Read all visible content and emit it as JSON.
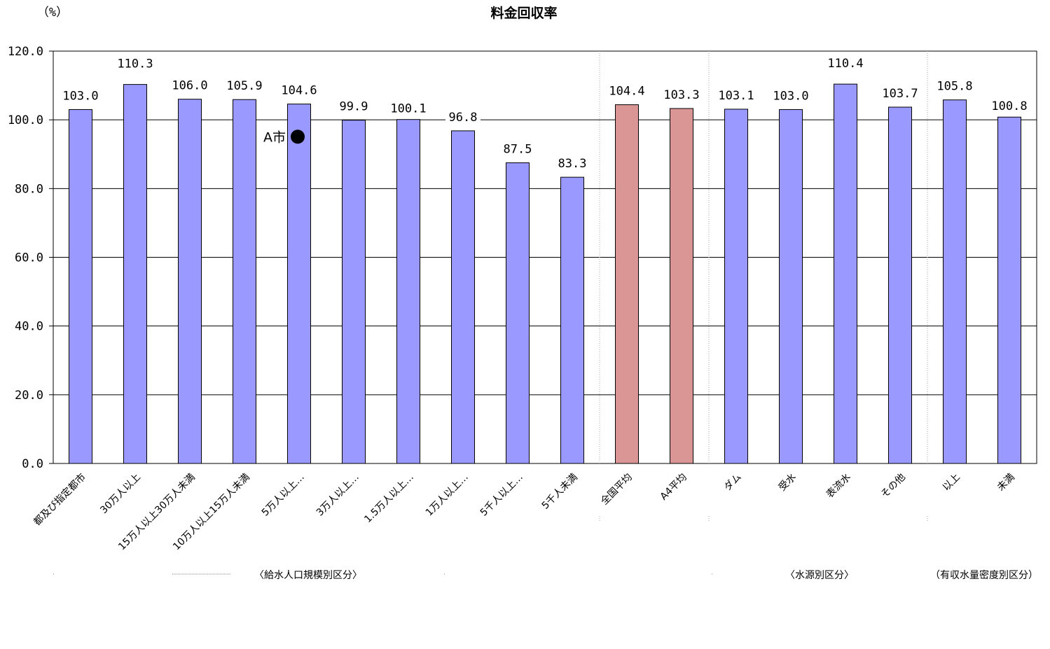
{
  "chart_data": {
    "type": "bar",
    "title": "料金回収率",
    "ylabel": "（%）",
    "ylim": [
      0,
      120
    ],
    "yticks": [
      "0.0",
      "20.0",
      "40.0",
      "60.0",
      "80.0",
      "100.0",
      "120.0"
    ],
    "grid": true,
    "categories": [
      "都及び指定都市",
      "30万人以上",
      "15万人以上30万人未満",
      "10万人以上15万人未満",
      "5万人以上…",
      "3万人以上…",
      "1.5万人以上…",
      "1万人以上…",
      "5千人以上…",
      "5千人未満",
      "全国平均",
      "A4平均",
      "ダム",
      "受水",
      "表流水",
      "その他",
      "以上",
      "未満"
    ],
    "values": [
      103.0,
      110.3,
      106.0,
      105.9,
      104.6,
      99.9,
      100.1,
      96.8,
      87.5,
      83.3,
      104.4,
      103.3,
      103.1,
      103.0,
      110.4,
      103.7,
      105.8,
      100.8
    ],
    "value_labels": [
      "103.0",
      "110.3",
      "106.0",
      "105.9",
      "104.6",
      "99.9",
      "100.1",
      "96.8",
      "87.5",
      "83.3",
      "104.4",
      "103.3",
      "103.1",
      "103.0",
      "110.4",
      "103.7",
      "105.8",
      "100.8"
    ],
    "bar_colors": [
      "#9999ff",
      "#9999ff",
      "#9999ff",
      "#9999ff",
      "#9999ff",
      "#9999ff",
      "#9999ff",
      "#9999ff",
      "#9999ff",
      "#9999ff",
      "#d99694",
      "#d99694",
      "#9999ff",
      "#9999ff",
      "#9999ff",
      "#9999ff",
      "#9999ff",
      "#9999ff"
    ],
    "group_labels": [
      "〈給水人口規模別区分〉",
      "〈水源別区分〉",
      "（有収水量密度別区分）"
    ],
    "marker": {
      "label": "A市",
      "category_index": 4,
      "value": 95.5,
      "color": "#000000"
    }
  }
}
